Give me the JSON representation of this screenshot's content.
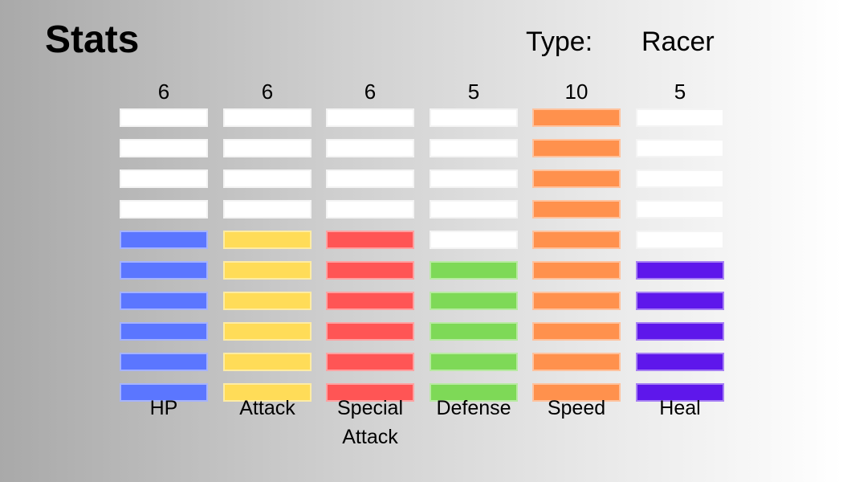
{
  "title": "Stats",
  "type": {
    "label": "Type:",
    "value": "Racer"
  },
  "max_level": 10,
  "empty_color": "#ffffff",
  "stats": [
    {
      "name": "HP",
      "value": 6,
      "color": "#5b76ff"
    },
    {
      "name": "Attack",
      "value": 6,
      "color": "#ffdc58"
    },
    {
      "name": "Special Attack",
      "value": 6,
      "color": "#ff5555"
    },
    {
      "name": "Defense",
      "value": 5,
      "color": "#7ed957"
    },
    {
      "name": "Speed",
      "value": 10,
      "color": "#ff914d"
    },
    {
      "name": "Heal",
      "value": 5,
      "color": "#5e17eb"
    }
  ]
}
